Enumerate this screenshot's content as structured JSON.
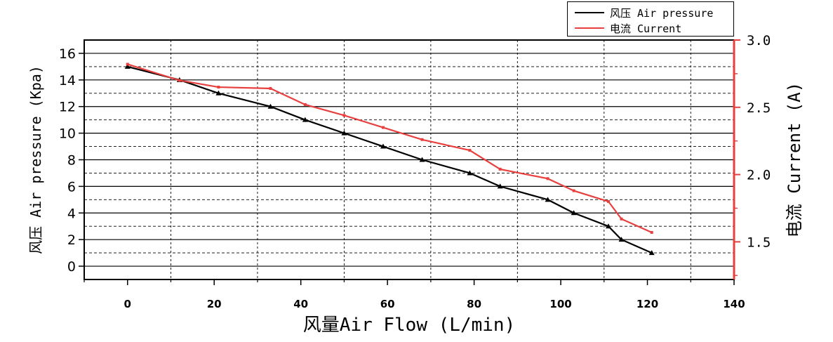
{
  "chart_data": {
    "type": "line",
    "xlabel": "风量Air Flow (L/min)",
    "ylabel_left": "风压 Air pressure (Kpa)",
    "ylabel_right": "电流 Current (A)",
    "xlim": [
      -10,
      140
    ],
    "ylim_left": [
      -1,
      17
    ],
    "ylim_right": [
      1.22,
      3.0
    ],
    "x_ticks": [
      0,
      20,
      40,
      60,
      80,
      100,
      120,
      140
    ],
    "y_left_ticks": [
      0,
      2,
      4,
      6,
      8,
      10,
      12,
      14,
      16
    ],
    "y_right_ticks": [
      1.5,
      2.0,
      2.5,
      3.0
    ],
    "x_tick_labels": [
      "0",
      "20",
      "40",
      "60",
      "80",
      "100",
      "120",
      "140"
    ],
    "y_left_tick_labels": [
      "0",
      "2",
      "4",
      "6",
      "8",
      "10",
      "12",
      "14",
      "16"
    ],
    "y_right_tick_labels": [
      "1.5",
      "2.0",
      "2.5",
      "3.0"
    ],
    "grid": true,
    "legend_position": "top-right",
    "series": [
      {
        "name": "风压 Air pressure",
        "axis": "left",
        "color": "#000000",
        "marker": "triangle",
        "x": [
          0,
          12,
          21,
          33,
          41,
          50,
          59,
          68,
          79,
          86,
          97,
          103,
          111,
          114,
          121
        ],
        "y": [
          15,
          14,
          13,
          12,
          11,
          10,
          9,
          8,
          7,
          6,
          5,
          4,
          3,
          2,
          1
        ]
      },
      {
        "name": "电流 Current",
        "axis": "right",
        "color": "#e8403f",
        "marker": "square",
        "x": [
          0,
          12,
          21,
          33,
          41,
          50,
          59,
          68,
          79,
          86,
          97,
          103,
          111,
          114,
          121
        ],
        "y": [
          2.82,
          2.7,
          2.65,
          2.64,
          2.52,
          2.44,
          2.35,
          2.26,
          2.18,
          2.04,
          1.97,
          1.88,
          1.8,
          1.67,
          1.57
        ]
      }
    ]
  }
}
